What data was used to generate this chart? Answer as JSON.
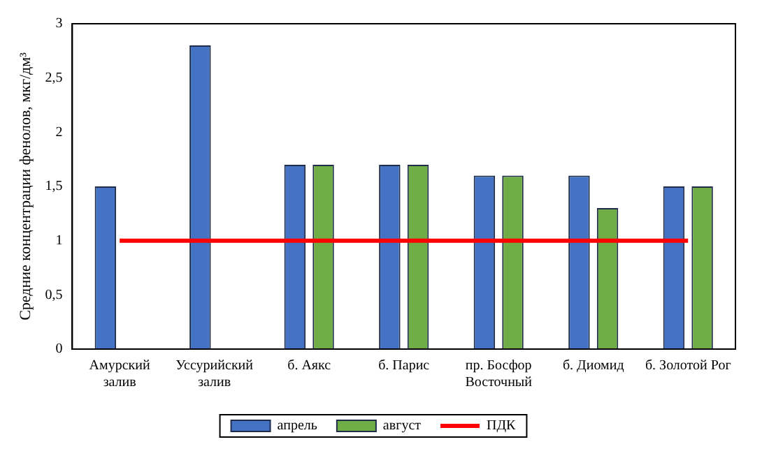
{
  "chart_data": {
    "type": "bar",
    "ylabel": "Средние концентрации фенолов, мкг/дм³",
    "categories": [
      "Амурский залив",
      "Уссурийский залив",
      "б. Аякс",
      "б. Парис",
      "пр. Босфор Восточный",
      "б. Диомид",
      "б. Золотой Рог"
    ],
    "series": [
      {
        "name": "апрель",
        "color": "#4472c4",
        "values": [
          1.5,
          2.8,
          1.7,
          1.7,
          1.6,
          1.6,
          1.5
        ]
      },
      {
        "name": "август",
        "color": "#70ad47",
        "values": [
          null,
          null,
          1.7,
          1.7,
          1.6,
          1.3,
          1.5
        ]
      },
      {
        "name": "ПДК",
        "type": "line",
        "color": "#ff0000",
        "marker": "none",
        "values": [
          1,
          1,
          1,
          1,
          1,
          1,
          1
        ]
      }
    ],
    "ylim": [
      0,
      3
    ],
    "yticks": [
      0,
      {
        "value": 0.5,
        "label": "0,5"
      },
      1,
      {
        "value": 1.5,
        "label": "1,5"
      },
      2,
      {
        "value": 2.5,
        "label": "2,5"
      },
      3
    ],
    "grid": false,
    "legend": "bottom"
  }
}
